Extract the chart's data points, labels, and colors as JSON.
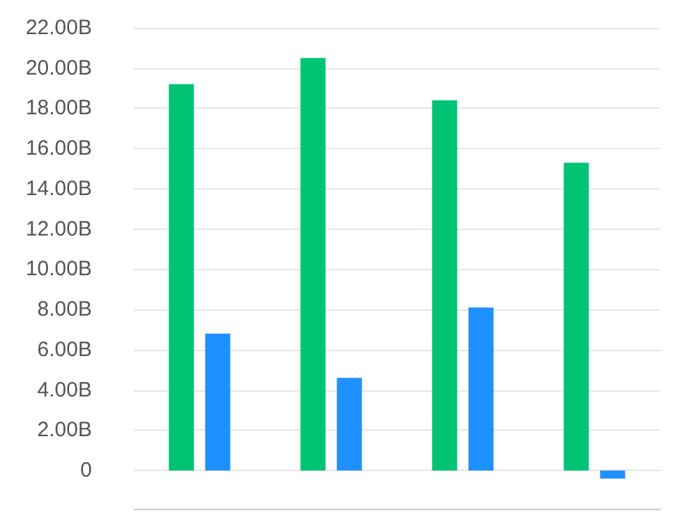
{
  "chart_data": {
    "type": "bar",
    "categories": [
      null,
      null,
      null,
      null
    ],
    "series": [
      {
        "color": "#00c373",
        "values": [
          19.2,
          20.5,
          18.4,
          15.3
        ]
      },
      {
        "color": "#1e90ff",
        "values": [
          6.8,
          4.6,
          8.1,
          -0.4
        ]
      }
    ],
    "ylim": [
      -1.9,
      22
    ],
    "yticks": [
      {
        "value": 0,
        "label": "0"
      },
      {
        "value": 2,
        "label": "2.00B"
      },
      {
        "value": 4,
        "label": "4.00B"
      },
      {
        "value": 6,
        "label": "6.00B"
      },
      {
        "value": 8,
        "label": "8.00B"
      },
      {
        "value": 10,
        "label": "10.00B"
      },
      {
        "value": 12,
        "label": "12.00B"
      },
      {
        "value": 14,
        "label": "14.00B"
      },
      {
        "value": 16,
        "label": "16.00B"
      },
      {
        "value": 18,
        "label": "18.00B"
      },
      {
        "value": 20,
        "label": "20.00B"
      },
      {
        "value": 22,
        "label": "22.00B"
      }
    ],
    "grid": "y"
  }
}
